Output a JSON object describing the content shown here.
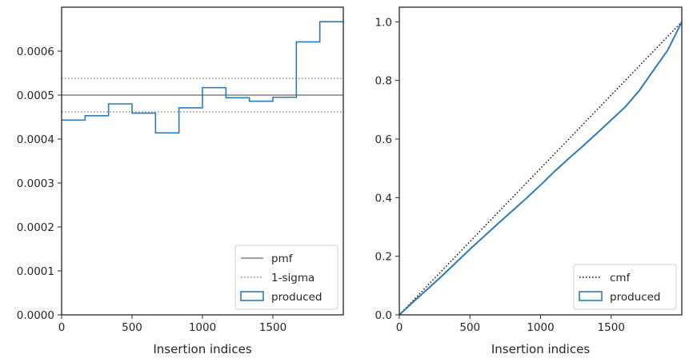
{
  "chart_data": [
    {
      "type": "step",
      "xlabel": "Insertion indices",
      "ylabel": "",
      "xlim": [
        0,
        2000
      ],
      "ylim": [
        0,
        0.0007
      ],
      "xticks": [
        0,
        500,
        1000,
        1500
      ],
      "xtick_labels": [
        "0",
        "500",
        "1000",
        "1500"
      ],
      "yticks": [
        0,
        0.0001,
        0.0002,
        0.0003,
        0.0004,
        0.0005,
        0.0006
      ],
      "ytick_labels": [
        "0.0000",
        "0.0001",
        "0.0002",
        "0.0003",
        "0.0004",
        "0.0005",
        "0.0006"
      ],
      "pmf": 0.0005,
      "sigma_band": [
        0.000462,
        0.000538
      ],
      "bin_edges": [
        0,
        166.7,
        333.3,
        500,
        666.7,
        833.3,
        1000,
        1166.7,
        1333.3,
        1500,
        1666.7,
        1833.3,
        2000
      ],
      "produced": [
        0.000443,
        0.000453,
        0.00048,
        0.000459,
        0.000414,
        0.000471,
        0.000517,
        0.000494,
        0.000486,
        0.000495,
        0.000621,
        0.000667
      ],
      "legend": {
        "position": "lower right",
        "entries": [
          {
            "label": "pmf",
            "style": "solid-gray"
          },
          {
            "label": "1-sigma",
            "style": "dotted-gray"
          },
          {
            "label": "produced",
            "style": "step-box"
          }
        ]
      },
      "colors": {
        "produced": "#2c7bb6",
        "reference": "#808080"
      }
    },
    {
      "type": "step",
      "xlabel": "Insertion indices",
      "ylabel": "",
      "xlim": [
        0,
        2000
      ],
      "ylim": [
        0,
        1.05
      ],
      "xticks": [
        0,
        500,
        1000,
        1500
      ],
      "xtick_labels": [
        "0",
        "500",
        "1000",
        "1500"
      ],
      "yticks": [
        0,
        0.2,
        0.4,
        0.6,
        0.8,
        1.0
      ],
      "ytick_labels": [
        "0.0",
        "0.2",
        "0.4",
        "0.6",
        "0.8",
        "1.0"
      ],
      "cmf": {
        "x": [
          0,
          2000
        ],
        "y": [
          0,
          1
        ]
      },
      "produced": {
        "x": [
          0,
          100,
          200,
          300,
          400,
          500,
          600,
          700,
          800,
          900,
          1000,
          1100,
          1200,
          1300,
          1400,
          1500,
          1600,
          1700,
          1800,
          1900,
          2000
        ],
        "y": [
          0,
          0.045,
          0.088,
          0.132,
          0.178,
          0.224,
          0.268,
          0.312,
          0.355,
          0.398,
          0.443,
          0.49,
          0.534,
          0.576,
          0.62,
          0.665,
          0.71,
          0.766,
          0.835,
          0.903,
          1.0
        ]
      },
      "legend": {
        "position": "lower right",
        "entries": [
          {
            "label": "cmf",
            "style": "dotted-black"
          },
          {
            "label": "produced",
            "style": "step-box"
          }
        ]
      },
      "colors": {
        "produced": "#2c7bb6",
        "reference": "#000000"
      }
    }
  ]
}
